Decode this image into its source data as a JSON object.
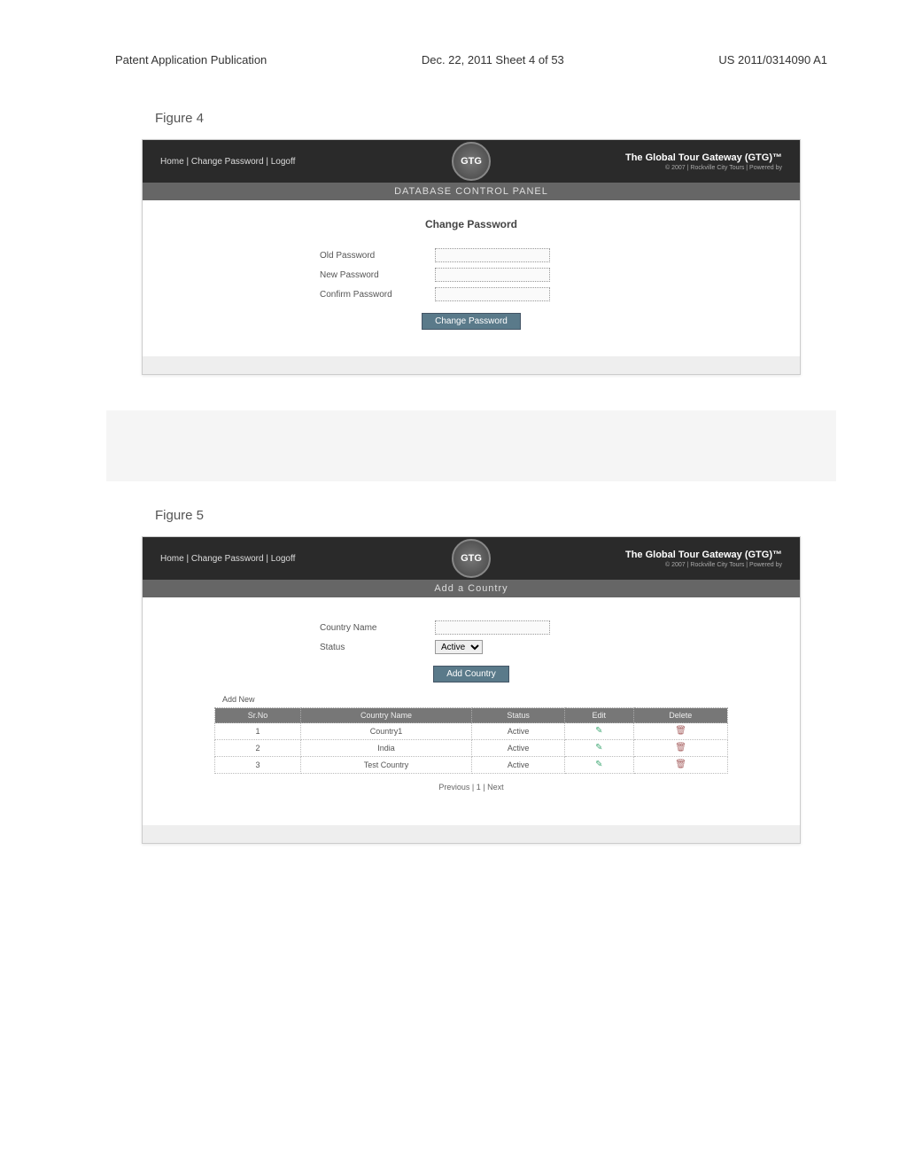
{
  "doc_header": {
    "left": "Patent Application Publication",
    "center": "Dec. 22, 2011  Sheet 4 of 53",
    "right": "US 2011/0314090 A1"
  },
  "figure4": {
    "label": "Figure 4",
    "nav": {
      "home": "Home",
      "change_pw": "Change Password",
      "logoff": "Logoff",
      "sep": " | "
    },
    "logo_text": "GTG",
    "brand_title": "The Global Tour Gateway (GTG)™",
    "brand_sub": "© 2007 | Rockville City Tours | Powered by",
    "banner": "DATABASE CONTROL PANEL",
    "section_title": "Change Password",
    "labels": {
      "old": "Old Password",
      "new": "New Password",
      "confirm": "Confirm Password"
    },
    "button": "Change Password"
  },
  "figure5": {
    "label": "Figure 5",
    "nav": {
      "home": "Home",
      "change_pw": "Change Password",
      "logoff": "Logoff",
      "sep": " | "
    },
    "logo_text": "GTG",
    "brand_title": "The Global Tour Gateway (GTG)™",
    "brand_sub": "© 2007 | Rockville City Tours | Powered by",
    "banner": "Add a Country",
    "labels": {
      "country": "Country Name",
      "status": "Status"
    },
    "status_value": "Active",
    "button": "Add Country",
    "addnew": "Add New",
    "table": {
      "headers": {
        "srno": "Sr.No",
        "name": "Country Name",
        "status": "Status",
        "edit": "Edit",
        "delete": "Delete"
      },
      "rows": [
        {
          "n": "1",
          "name": "Country1",
          "status": "Active"
        },
        {
          "n": "2",
          "name": "India",
          "status": "Active"
        },
        {
          "n": "3",
          "name": "Test Country",
          "status": "Active"
        }
      ]
    },
    "pager": "Previous | 1 | Next"
  }
}
